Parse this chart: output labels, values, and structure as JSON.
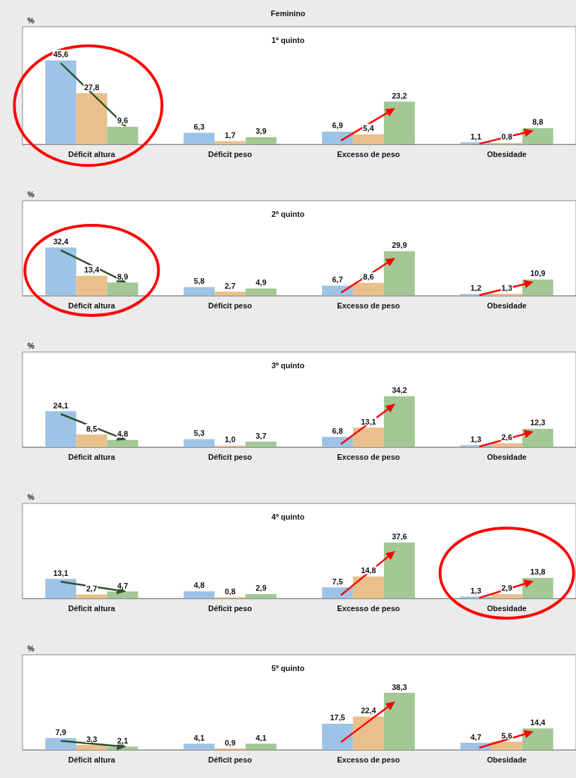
{
  "chart_data": [
    {
      "type": "bar",
      "title": "Feminino",
      "subtitle": "1º quinto",
      "ylabel": "%",
      "categories": [
        "Déficit altura",
        "Déficit peso",
        "Excesso de peso",
        "Obesidade"
      ],
      "series": [
        {
          "color": "#9dc3e6",
          "values": [
            45.6,
            6.3,
            6.9,
            1.1
          ],
          "value_labels": [
            "45,6",
            "6,3",
            "6,9",
            "1,1"
          ]
        },
        {
          "color": "#e9c08b",
          "values": [
            27.8,
            1.7,
            5.4,
            0.8
          ],
          "value_labels": [
            "27,8",
            "1,7",
            "5,4",
            "0,8"
          ]
        },
        {
          "color": "#a3c795",
          "values": [
            9.6,
            3.9,
            23.2,
            8.8
          ],
          "value_labels": [
            "9,6",
            "3,9",
            "23,2",
            "8,8"
          ]
        }
      ]
    },
    {
      "type": "bar",
      "subtitle": "2º quinto",
      "ylabel": "%",
      "categories": [
        "Déficit altura",
        "Déficit peso",
        "Excesso de peso",
        "Obesidade"
      ],
      "series": [
        {
          "color": "#9dc3e6",
          "values": [
            32.4,
            5.8,
            6.7,
            1.2
          ],
          "value_labels": [
            "32,4",
            "5,8",
            "6,7",
            "1,2"
          ]
        },
        {
          "color": "#e9c08b",
          "values": [
            13.4,
            2.7,
            8.6,
            1.3
          ],
          "value_labels": [
            "13,4",
            "2,7",
            "8,6",
            "1,3"
          ]
        },
        {
          "color": "#a3c795",
          "values": [
            8.9,
            4.9,
            29.9,
            10.9
          ],
          "value_labels": [
            "8,9",
            "4,9",
            "29,9",
            "10,9"
          ]
        }
      ]
    },
    {
      "type": "bar",
      "subtitle": "3º quinto",
      "ylabel": "%",
      "categories": [
        "Déficit altura",
        "Déficit peso",
        "Excesso de peso",
        "Obesidade"
      ],
      "series": [
        {
          "color": "#9dc3e6",
          "values": [
            24.1,
            5.3,
            6.8,
            1.3
          ],
          "value_labels": [
            "24,1",
            "5,3",
            "6,8",
            "1,3"
          ]
        },
        {
          "color": "#e9c08b",
          "values": [
            8.5,
            1.0,
            13.1,
            2.6
          ],
          "value_labels": [
            "8,5",
            "1,0",
            "13,1",
            "2,6"
          ]
        },
        {
          "color": "#a3c795",
          "values": [
            4.8,
            3.7,
            34.2,
            12.3
          ],
          "value_labels": [
            "4,8",
            "3,7",
            "34,2",
            "12,3"
          ]
        }
      ]
    },
    {
      "type": "bar",
      "subtitle": "4º quinto",
      "ylabel": "%",
      "categories": [
        "Déficit altura",
        "Déficit peso",
        "Excesso de peso",
        "Obesidade"
      ],
      "series": [
        {
          "color": "#9dc3e6",
          "values": [
            13.1,
            4.8,
            7.5,
            1.3
          ],
          "value_labels": [
            "13,1",
            "4,8",
            "7,5",
            "1,3"
          ]
        },
        {
          "color": "#e9c08b",
          "values": [
            2.7,
            0.8,
            14.8,
            2.9
          ],
          "value_labels": [
            "2,7",
            "0,8",
            "14,8",
            "2,9"
          ]
        },
        {
          "color": "#a3c795",
          "values": [
            4.7,
            2.9,
            37.6,
            13.8
          ],
          "value_labels": [
            "4,7",
            "2,9",
            "37,6",
            "13,8"
          ]
        }
      ]
    },
    {
      "type": "bar",
      "subtitle": "5º quinto",
      "ylabel": "%",
      "categories": [
        "Déficit altura",
        "Déficit peso",
        "Excesso de peso",
        "Obesidade"
      ],
      "series": [
        {
          "color": "#9dc3e6",
          "values": [
            7.9,
            4.1,
            17.5,
            4.7
          ],
          "value_labels": [
            "7,9",
            "4,1",
            "17,5",
            "4,7"
          ]
        },
        {
          "color": "#e9c08b",
          "values": [
            3.3,
            0.9,
            22.4,
            5.6
          ],
          "value_labels": [
            "3,3",
            "0,9",
            "22,4",
            "5,6"
          ]
        },
        {
          "color": "#a3c795",
          "values": [
            2.1,
            4.1,
            38.3,
            14.4
          ],
          "value_labels": [
            "2,1",
            "4,1",
            "38,3",
            "14,4"
          ]
        }
      ]
    }
  ]
}
